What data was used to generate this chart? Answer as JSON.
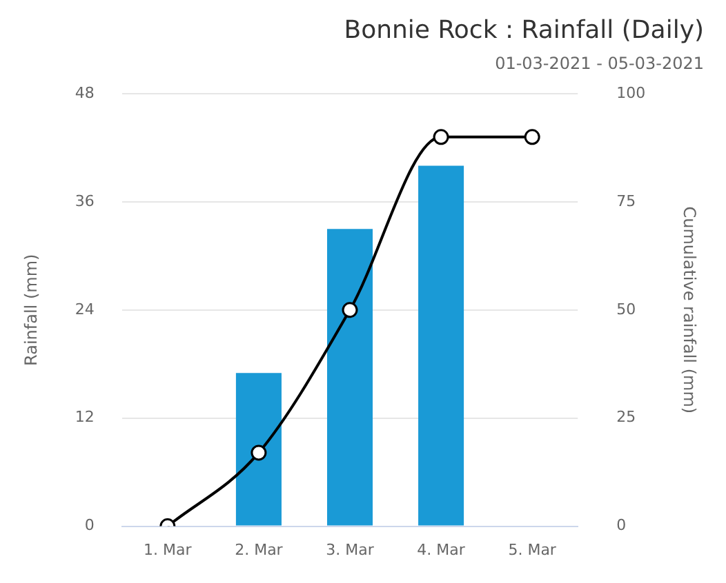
{
  "chart_data": {
    "type": "bar",
    "title": "Bonnie Rock : Rainfall (Daily)",
    "subtitle": "01-03-2021 - 05-03-2021",
    "ylabel": "Rainfall (mm)",
    "y2label": "Cumulative rainfall (mm)",
    "categories": [
      "1. Mar",
      "2. Mar",
      "3. Mar",
      "4. Mar",
      "5. Mar"
    ],
    "series": [
      {
        "color": "#1a9ad6",
        "values": [
          0,
          17,
          33,
          40,
          0
        ]
      },
      {
        "type": "line",
        "axis": "y2",
        "color": "#000000",
        "marker": "circle",
        "values": [
          0,
          17,
          50,
          90,
          90
        ]
      }
    ],
    "ylim": [
      0,
      48
    ],
    "yticks": [
      0,
      12,
      24,
      36,
      48
    ],
    "y2lim": [
      0,
      100
    ],
    "y2ticks": [
      0,
      25,
      50,
      75,
      100
    ],
    "grid": "y",
    "legend": false
  }
}
